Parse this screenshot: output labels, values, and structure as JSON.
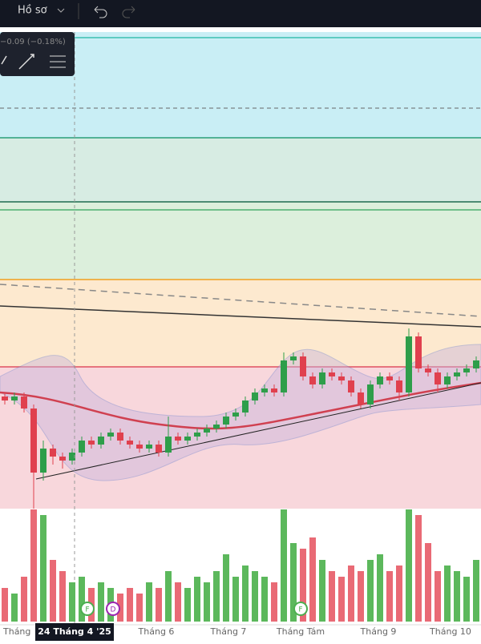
{
  "toolbar": {
    "profile": "Hồ sơ"
  },
  "legend_value": "−0.09 (−0.18%)",
  "chart_data": {
    "type": "candlestick",
    "candles": [
      [
        14.5,
        15,
        13.5,
        14
      ],
      [
        14,
        15,
        13.5,
        14.5
      ],
      [
        14.5,
        15,
        12.5,
        13
      ],
      [
        13,
        13.5,
        0.5,
        5
      ],
      [
        5,
        9,
        4,
        8
      ],
      [
        8,
        8.5,
        6,
        7
      ],
      [
        7,
        7.5,
        5.5,
        6.5
      ],
      [
        6.5,
        8,
        6,
        7.5
      ],
      [
        7.5,
        9.5,
        7,
        9
      ],
      [
        9,
        9.5,
        8,
        8.5
      ],
      [
        8.5,
        10,
        8,
        9.5
      ],
      [
        9.5,
        10.5,
        9,
        10
      ],
      [
        10,
        10.5,
        8.5,
        9
      ],
      [
        9,
        9.5,
        8,
        8.5
      ],
      [
        8.5,
        9,
        7.5,
        8
      ],
      [
        8,
        9,
        7.5,
        8.5
      ],
      [
        8.5,
        9,
        7,
        7.5
      ],
      [
        7.5,
        12,
        7,
        9.5
      ],
      [
        9.5,
        10,
        8.5,
        9
      ],
      [
        9,
        10,
        8.5,
        9.5
      ],
      [
        9.5,
        10.5,
        9,
        10
      ],
      [
        10,
        11,
        9.5,
        10.5
      ],
      [
        10.5,
        11.5,
        10,
        11
      ],
      [
        11,
        12.5,
        10.5,
        12
      ],
      [
        12,
        13,
        11.5,
        12.5
      ],
      [
        12.5,
        14.5,
        12,
        14
      ],
      [
        14,
        15.5,
        13.5,
        15
      ],
      [
        15,
        16,
        14.5,
        15.5
      ],
      [
        15.5,
        16,
        14.5,
        15
      ],
      [
        15,
        20,
        14.5,
        19
      ],
      [
        19,
        20,
        18.5,
        19.5
      ],
      [
        19.5,
        20,
        16.5,
        17
      ],
      [
        17,
        17.5,
        15.5,
        16
      ],
      [
        16,
        18,
        15.5,
        17.5
      ],
      [
        17.5,
        18,
        16.5,
        17
      ],
      [
        17,
        17.5,
        16,
        16.5
      ],
      [
        16.5,
        17,
        14.5,
        15
      ],
      [
        15,
        15.5,
        13,
        13.5
      ],
      [
        13.5,
        16.5,
        13,
        16
      ],
      [
        16,
        17.5,
        15.5,
        17
      ],
      [
        17,
        17.5,
        16,
        16.5
      ],
      [
        16.5,
        17,
        14,
        15
      ],
      [
        15,
        23,
        14.5,
        22
      ],
      [
        22,
        22.5,
        17.5,
        18
      ],
      [
        18,
        18.5,
        17,
        17.5
      ],
      [
        17.5,
        18,
        15,
        16
      ],
      [
        16,
        17.5,
        15.5,
        17
      ],
      [
        17,
        18,
        16.5,
        17.5
      ],
      [
        17.5,
        18.5,
        17,
        18
      ],
      [
        18,
        19.5,
        17.5,
        19
      ]
    ],
    "volumes": [
      30,
      25,
      40,
      100,
      95,
      55,
      45,
      35,
      40,
      30,
      35,
      30,
      25,
      30,
      25,
      35,
      30,
      45,
      35,
      30,
      40,
      35,
      45,
      60,
      40,
      50,
      45,
      40,
      35,
      100,
      70,
      65,
      75,
      55,
      45,
      40,
      50,
      45,
      55,
      60,
      45,
      50,
      100,
      95,
      70,
      45,
      50,
      45,
      40,
      55
    ],
    "x_labels": [
      "Tháng",
      "24 Tháng 4 '25",
      "Tháng 6",
      "Tháng 7",
      "Tháng Tám",
      "Tháng 9",
      "Tháng 10"
    ]
  },
  "events": [
    "F",
    "D",
    "F"
  ]
}
